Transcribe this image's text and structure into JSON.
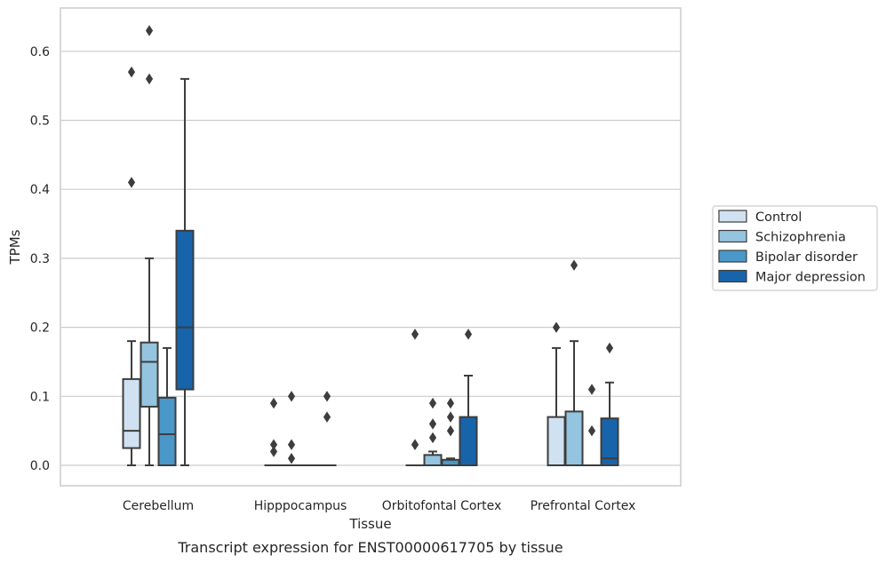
{
  "chart_data": {
    "type": "box",
    "caption": "Transcript expression for ENST00000617705 by tissue",
    "xlabel": "Tissue",
    "ylabel": "TPMs",
    "ylim": [
      -0.03,
      0.66
    ],
    "yticks": [
      "0.0",
      "0.1",
      "0.2",
      "0.3",
      "0.4",
      "0.5",
      "0.6"
    ],
    "grid": "horizontal",
    "legend_position": "right",
    "categories": [
      "Cerebellum",
      "Hipppocampus",
      "Orbitofontal Cortex",
      "Prefrontal Cortex"
    ],
    "series": [
      {
        "name": "Control",
        "color": "#d0e1f2",
        "boxes": [
          {
            "whislo": 0.0,
            "q1": 0.025,
            "med": 0.05,
            "q3": 0.125,
            "whishi": 0.18,
            "fliers": [
              0.41,
              0.57
            ]
          },
          {
            "whislo": 0.0,
            "q1": 0.0,
            "med": 0.0,
            "q3": 0.0,
            "whishi": 0.0,
            "fliers": [
              0.02,
              0.03,
              0.09
            ]
          },
          {
            "whislo": 0.0,
            "q1": 0.0,
            "med": 0.0,
            "q3": 0.0,
            "whishi": 0.0,
            "fliers": [
              0.03,
              0.03,
              0.19
            ]
          },
          {
            "whislo": 0.0,
            "q1": 0.0,
            "med": 0.0,
            "q3": 0.07,
            "whishi": 0.17,
            "fliers": [
              0.2
            ]
          }
        ]
      },
      {
        "name": "Schizophrenia",
        "color": "#94c4df",
        "boxes": [
          {
            "whislo": 0.0,
            "q1": 0.085,
            "med": 0.15,
            "q3": 0.178,
            "whishi": 0.3,
            "fliers": [
              0.56,
              0.63
            ]
          },
          {
            "whislo": 0.0,
            "q1": 0.0,
            "med": 0.0,
            "q3": 0.0,
            "whishi": 0.0,
            "fliers": [
              0.01,
              0.03,
              0.1
            ]
          },
          {
            "whislo": 0.0,
            "q1": 0.0,
            "med": 0.0,
            "q3": 0.015,
            "whishi": 0.02,
            "fliers": [
              0.04,
              0.06,
              0.09
            ]
          },
          {
            "whislo": 0.0,
            "q1": 0.0,
            "med": 0.0,
            "q3": 0.078,
            "whishi": 0.18,
            "fliers": [
              0.29
            ]
          }
        ]
      },
      {
        "name": "Bipolar disorder",
        "color": "#4a98c9",
        "boxes": [
          {
            "whislo": 0.0,
            "q1": 0.0,
            "med": 0.045,
            "q3": 0.098,
            "whishi": 0.17,
            "fliers": []
          },
          {
            "whislo": 0.0,
            "q1": 0.0,
            "med": 0.0,
            "q3": 0.0,
            "whishi": 0.0,
            "fliers": []
          },
          {
            "whislo": 0.0,
            "q1": 0.0,
            "med": 0.0,
            "q3": 0.008,
            "whishi": 0.01,
            "fliers": [
              0.05,
              0.07,
              0.09
            ]
          },
          {
            "whislo": 0.0,
            "q1": 0.0,
            "med": 0.0,
            "q3": 0.0,
            "whishi": 0.0,
            "fliers": [
              0.05,
              0.11
            ]
          }
        ]
      },
      {
        "name": "Major depression",
        "color": "#1764ab",
        "boxes": [
          {
            "whislo": 0.0,
            "q1": 0.11,
            "med": 0.2,
            "q3": 0.34,
            "whishi": 0.56,
            "fliers": []
          },
          {
            "whislo": 0.0,
            "q1": 0.0,
            "med": 0.0,
            "q3": 0.0,
            "whishi": 0.0,
            "fliers": [
              0.07,
              0.1
            ]
          },
          {
            "whislo": 0.0,
            "q1": 0.0,
            "med": 0.0,
            "q3": 0.07,
            "whishi": 0.13,
            "fliers": [
              0.19
            ]
          },
          {
            "whislo": 0.0,
            "q1": 0.0,
            "med": 0.01,
            "q3": 0.068,
            "whishi": 0.12,
            "fliers": [
              0.17
            ]
          }
        ]
      }
    ]
  }
}
